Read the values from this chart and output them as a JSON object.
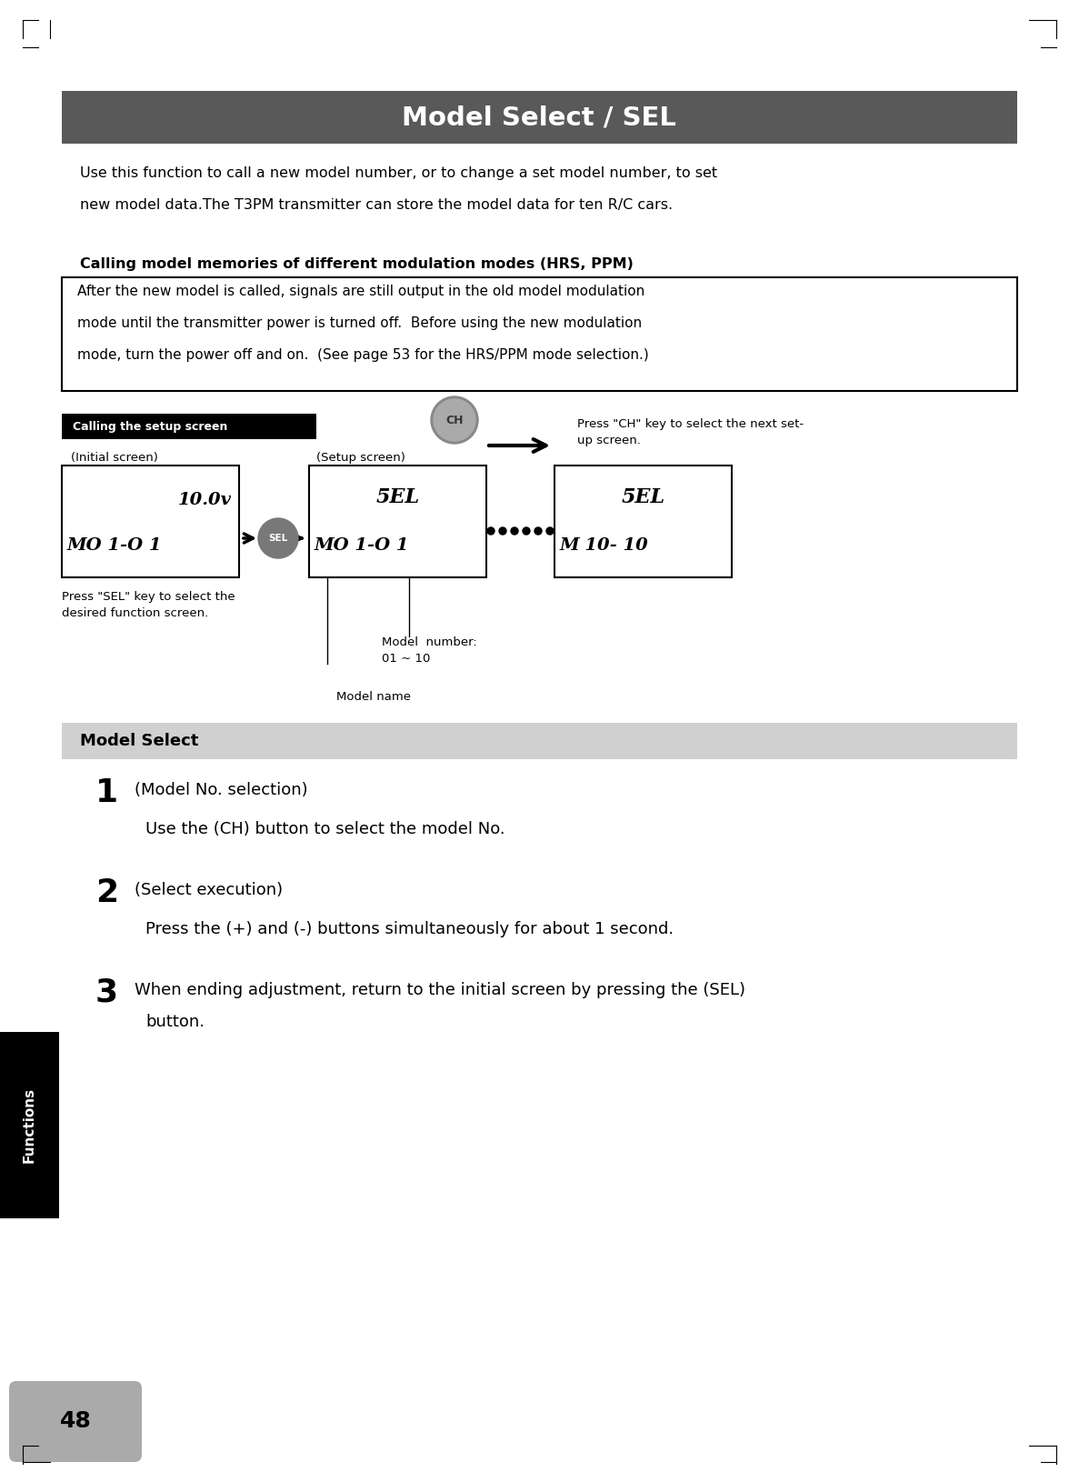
{
  "bg_color": "#ffffff",
  "page_width": 11.87,
  "page_height": 16.3,
  "title_text": "Model Select / SEL",
  "title_bg": "#595959",
  "title_fg": "#ffffff",
  "intro_text": "Use this function to call a new model number, or to change a set model number, to set\nnew model data.The T3PM transmitter can store the model data for ten R/C cars.",
  "calling_header": "Calling model memories of different modulation modes (HRS, PPM)",
  "calling_body": "After the new model is called, signals are still output in the old model modulation\nmode until the transmitter power is turned off.  Before using the new modulation\nmode, turn the power off and on.  (See page 53 for the HRS/PPM mode selection.)",
  "diagram_label": "Calling the setup screen",
  "initial_screen_label": "(Initial screen)",
  "setup_screen_label": "(Setup screen)",
  "initial_screen_top": "10.0v",
  "initial_screen_bot": "MO 1-O 1",
  "setup_screen_top": "5EL",
  "setup_screen_bot": "MO 1-O 1",
  "third_screen_top": "5EL",
  "third_screen_bot": "M 10- 10",
  "sel_button_label": "SEL",
  "ch_button_label": "CH",
  "press_sel_text": "Press \"SEL\" key to select the\ndesired function screen.",
  "press_ch_text": "Press \"CH\" key to select the next set-\nup screen.",
  "model_number_text": "Model  number:\n01 ~ 10",
  "model_name_text": "Model name",
  "section2_title": "Model Select",
  "section2_bg": "#d0d0d0",
  "step1_num": "1",
  "step1_title": "(Model No. selection)",
  "step1_body": "Use the (CH) button to select the model No.",
  "step2_num": "2",
  "step2_title": "(Select execution)",
  "step2_body": "Press the (+) and (-) buttons simultaneously for about 1 second.",
  "step3_num": "3",
  "step3_body": "When ending adjustment, return to the initial screen by pressing the (SEL)\nbutton.",
  "functions_label": "Functions",
  "page_number": "48",
  "side_tab_color": "#000000",
  "page_num_bg": "#aaaaaa"
}
